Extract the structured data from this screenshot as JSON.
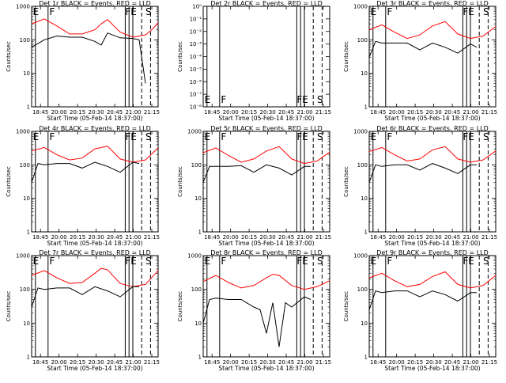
{
  "figure": {
    "x_title": "Start Time (05-Feb-14 18:37:00)",
    "y_title": "Counts/sec",
    "x_ticks": [
      "18:45",
      "20:00",
      "20:15",
      "20:30",
      "20:45",
      "21:00",
      "21:15"
    ],
    "y_ticks_main": [
      "1",
      "10",
      "100",
      "1000"
    ],
    "y_ticks_small": [
      "10⁻⁸",
      "10⁻⁷",
      "10⁻⁶",
      "10⁻⁵",
      "10⁻⁴",
      "10⁻³",
      "10⁻²",
      "10⁻¹",
      "10⁰"
    ],
    "markers": [
      "E",
      "F",
      "FE",
      "S"
    ],
    "colors": {
      "events": "#000000",
      "lld": "#ff0000"
    }
  },
  "chart_data": [
    {
      "type": "line",
      "title": "Det 1r BLACK = Events, RED = LLD",
      "yscale": "log",
      "ylim": [
        1,
        1000
      ],
      "x_range": [
        0,
        1
      ],
      "series": [
        {
          "color": "red",
          "x": [
            0.0,
            0.1,
            0.2,
            0.3,
            0.4,
            0.5,
            0.55,
            0.6,
            0.7,
            0.8,
            0.85,
            0.9,
            0.95,
            1.0
          ],
          "values": [
            300,
            420,
            260,
            150,
            150,
            200,
            300,
            400,
            170,
            120,
            130,
            140,
            200,
            320
          ]
        },
        {
          "color": "black",
          "x": [
            0.0,
            0.1,
            0.2,
            0.3,
            0.4,
            0.5,
            0.55,
            0.6,
            0.7,
            0.8,
            0.85,
            0.9
          ],
          "values": [
            60,
            100,
            130,
            120,
            120,
            90,
            70,
            160,
            115,
            110,
            100,
            5
          ]
        }
      ]
    },
    {
      "type": "line",
      "title": "Det 2r BLACK = Events, RED = LLD",
      "yscale": "log",
      "ylim": [
        1e-08,
        1
      ],
      "x_range": [
        0,
        1
      ],
      "series": [
        {
          "color": "red",
          "x": [],
          "values": []
        },
        {
          "color": "black",
          "x": [],
          "values": []
        }
      ]
    },
    {
      "type": "line",
      "title": "Det 3r BLACK = Events, RED = LLD",
      "yscale": "log",
      "ylim": [
        1,
        1000
      ],
      "x_range": [
        0,
        1
      ],
      "series": [
        {
          "color": "red",
          "x": [
            0.0,
            0.1,
            0.2,
            0.3,
            0.4,
            0.5,
            0.6,
            0.7,
            0.8,
            0.9,
            1.0
          ],
          "values": [
            200,
            280,
            170,
            110,
            140,
            260,
            350,
            150,
            110,
            130,
            250
          ]
        },
        {
          "color": "black",
          "x": [
            0.0,
            0.05,
            0.1,
            0.2,
            0.3,
            0.4,
            0.5,
            0.6,
            0.7,
            0.8,
            0.85
          ],
          "values": [
            30,
            90,
            80,
            80,
            80,
            50,
            80,
            60,
            40,
            75,
            60
          ]
        }
      ]
    },
    {
      "type": "line",
      "title": "Det 4r BLACK = Events, RED = LLD",
      "yscale": "log",
      "ylim": [
        1,
        1000
      ],
      "x_range": [
        0,
        1
      ],
      "series": [
        {
          "color": "red",
          "x": [
            0.0,
            0.1,
            0.2,
            0.3,
            0.4,
            0.5,
            0.6,
            0.7,
            0.8,
            0.9,
            1.0
          ],
          "values": [
            260,
            330,
            200,
            140,
            160,
            300,
            360,
            150,
            120,
            140,
            320
          ]
        },
        {
          "color": "black",
          "x": [
            0.0,
            0.05,
            0.1,
            0.2,
            0.3,
            0.4,
            0.5,
            0.6,
            0.7,
            0.8,
            0.85
          ],
          "values": [
            30,
            110,
            100,
            110,
            110,
            80,
            120,
            90,
            60,
            120,
            110
          ]
        }
      ]
    },
    {
      "type": "line",
      "title": "Det 5r BLACK = Events, RED = LLD",
      "yscale": "log",
      "ylim": [
        1,
        1000
      ],
      "x_range": [
        0,
        1
      ],
      "series": [
        {
          "color": "red",
          "x": [
            0.0,
            0.1,
            0.2,
            0.3,
            0.4,
            0.5,
            0.6,
            0.7,
            0.8,
            0.9,
            1.0
          ],
          "values": [
            230,
            320,
            190,
            120,
            150,
            260,
            350,
            150,
            110,
            130,
            240
          ]
        },
        {
          "color": "black",
          "x": [
            0.0,
            0.05,
            0.1,
            0.2,
            0.3,
            0.4,
            0.5,
            0.6,
            0.7,
            0.8,
            0.85
          ],
          "values": [
            30,
            90,
            90,
            90,
            95,
            60,
            100,
            80,
            50,
            90,
            90
          ]
        }
      ]
    },
    {
      "type": "line",
      "title": "Det 6r BLACK = Events, RED = LLD",
      "yscale": "log",
      "ylim": [
        1,
        1000
      ],
      "x_range": [
        0,
        1
      ],
      "series": [
        {
          "color": "red",
          "x": [
            0.0,
            0.1,
            0.2,
            0.3,
            0.4,
            0.5,
            0.6,
            0.7,
            0.8,
            0.9,
            1.0
          ],
          "values": [
            250,
            330,
            200,
            130,
            150,
            280,
            350,
            150,
            120,
            140,
            260
          ]
        },
        {
          "color": "black",
          "x": [
            0.0,
            0.05,
            0.1,
            0.2,
            0.3,
            0.4,
            0.5,
            0.6,
            0.7,
            0.8,
            0.85
          ],
          "values": [
            30,
            100,
            90,
            100,
            100,
            70,
            110,
            80,
            55,
            100,
            100
          ]
        }
      ]
    },
    {
      "type": "line",
      "title": "Det 7r BLACK = Events, RED = LLD",
      "yscale": "log",
      "ylim": [
        1,
        1000
      ],
      "x_range": [
        0,
        1
      ],
      "series": [
        {
          "color": "red",
          "x": [
            0.0,
            0.1,
            0.2,
            0.3,
            0.4,
            0.5,
            0.55,
            0.6,
            0.7,
            0.8,
            0.9,
            1.0
          ],
          "values": [
            260,
            360,
            220,
            150,
            160,
            300,
            420,
            380,
            150,
            120,
            140,
            360
          ]
        },
        {
          "color": "black",
          "x": [
            0.0,
            0.05,
            0.1,
            0.2,
            0.3,
            0.4,
            0.5,
            0.6,
            0.7,
            0.8,
            0.85
          ],
          "values": [
            30,
            110,
            100,
            110,
            110,
            70,
            120,
            90,
            60,
            120,
            120
          ]
        }
      ]
    },
    {
      "type": "line",
      "title": "Det 8r BLACK = Events, RED = LLD",
      "yscale": "log",
      "ylim": [
        1,
        1000
      ],
      "x_range": [
        0,
        1
      ],
      "series": [
        {
          "color": "red",
          "x": [
            0.0,
            0.1,
            0.2,
            0.3,
            0.4,
            0.5,
            0.55,
            0.6,
            0.7,
            0.8,
            0.9,
            1.0
          ],
          "values": [
            170,
            260,
            160,
            110,
            130,
            220,
            280,
            260,
            130,
            100,
            120,
            180
          ]
        },
        {
          "color": "black",
          "x": [
            0.0,
            0.05,
            0.1,
            0.2,
            0.3,
            0.4,
            0.45,
            0.5,
            0.55,
            0.6,
            0.65,
            0.7,
            0.8,
            0.85
          ],
          "values": [
            10,
            50,
            55,
            50,
            50,
            30,
            25,
            5,
            40,
            2,
            40,
            30,
            60,
            50
          ]
        }
      ]
    },
    {
      "type": "line",
      "title": "Det 9r BLACK = Events, RED = LLD",
      "yscale": "log",
      "ylim": [
        1,
        1000
      ],
      "x_range": [
        0,
        1
      ],
      "series": [
        {
          "color": "red",
          "x": [
            0.0,
            0.1,
            0.2,
            0.3,
            0.4,
            0.5,
            0.6,
            0.7,
            0.8,
            0.9,
            1.0
          ],
          "values": [
            220,
            300,
            180,
            120,
            140,
            240,
            330,
            140,
            110,
            130,
            260
          ]
        },
        {
          "color": "black",
          "x": [
            0.0,
            0.05,
            0.1,
            0.2,
            0.3,
            0.4,
            0.5,
            0.6,
            0.7,
            0.8,
            0.85
          ],
          "values": [
            25,
            90,
            80,
            90,
            90,
            60,
            90,
            70,
            45,
            80,
            80
          ]
        }
      ]
    }
  ]
}
